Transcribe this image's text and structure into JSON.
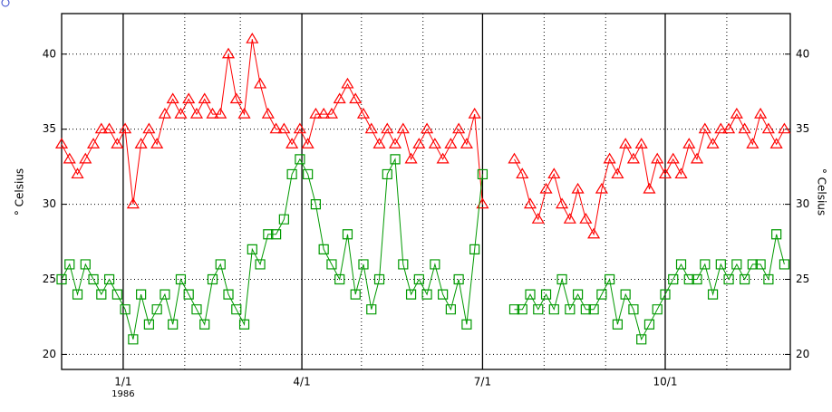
{
  "chart_data": {
    "type": "scatter-line",
    "y_label": "° Celsius",
    "xlim": [
      "1985-12-01",
      "1986-12-03"
    ],
    "xticks": [
      {
        "value": "1986-01-01",
        "label": "1/1",
        "sublabel": "1986"
      },
      {
        "value": "1986-04-01",
        "label": "4/1"
      },
      {
        "value": "1986-07-01",
        "label": "7/1"
      },
      {
        "value": "1986-10-01",
        "label": "10/1"
      }
    ],
    "minor_xticks": [
      "1986-02-01",
      "1986-03-01",
      "1986-05-01",
      "1986-06-01",
      "1986-08-01",
      "1986-09-01",
      "1986-11-01"
    ],
    "ylim": [
      19,
      42.7
    ],
    "yticks": [
      20,
      25,
      30,
      35,
      40
    ],
    "grid": true,
    "x": [
      "1985-12-01",
      "1985-12-05",
      "1985-12-09",
      "1985-12-13",
      "1985-12-17",
      "1985-12-21",
      "1985-12-25",
      "1985-12-29",
      "1986-01-02",
      "1986-01-06",
      "1986-01-10",
      "1986-01-14",
      "1986-01-18",
      "1986-01-22",
      "1986-01-26",
      "1986-01-30",
      "1986-02-03",
      "1986-02-07",
      "1986-02-11",
      "1986-02-15",
      "1986-02-19",
      "1986-02-23",
      "1986-02-27",
      "1986-03-03",
      "1986-03-07",
      "1986-03-11",
      "1986-03-15",
      "1986-03-19",
      "1986-03-23",
      "1986-03-27",
      "1986-03-31",
      "1986-04-04",
      "1986-04-08",
      "1986-04-12",
      "1986-04-16",
      "1986-04-20",
      "1986-04-24",
      "1986-04-28",
      "1986-05-02",
      "1986-05-06",
      "1986-05-10",
      "1986-05-14",
      "1986-05-18",
      "1986-05-22",
      "1986-05-26",
      "1986-05-30",
      "1986-06-03",
      "1986-06-07",
      "1986-06-11",
      "1986-06-15",
      "1986-06-19",
      "1986-06-23",
      "1986-06-27",
      "1986-07-01",
      "1986-07-05",
      "1986-07-09",
      "1986-07-13",
      "1986-07-17",
      "1986-07-21",
      "1986-07-25",
      "1986-07-29",
      "1986-08-02",
      "1986-08-06",
      "1986-08-10",
      "1986-08-14",
      "1986-08-18",
      "1986-08-22",
      "1986-08-26",
      "1986-08-30",
      "1986-09-03",
      "1986-09-07",
      "1986-09-11",
      "1986-09-15",
      "1986-09-19",
      "1986-09-23",
      "1986-09-27",
      "1986-10-01",
      "1986-10-05",
      "1986-10-09",
      "1986-10-13",
      "1986-10-17",
      "1986-10-21",
      "1986-10-25",
      "1986-10-29",
      "1986-11-02",
      "1986-11-06",
      "1986-11-10",
      "1986-11-14",
      "1986-11-18",
      "1986-11-22",
      "1986-11-26",
      "1986-11-30"
    ],
    "series": [
      {
        "color": "#ff0000",
        "marker": "triangle",
        "values": [
          34,
          33,
          32,
          33,
          34,
          35,
          35,
          34,
          35,
          30,
          34,
          35,
          34,
          36,
          37,
          36,
          37,
          36,
          37,
          36,
          36,
          40,
          37,
          36,
          41,
          38,
          36,
          35,
          35,
          34,
          35,
          34,
          36,
          36,
          36,
          37,
          38,
          37,
          36,
          35,
          34,
          35,
          34,
          35,
          33,
          34,
          35,
          34,
          33,
          34,
          35,
          34,
          36,
          30,
          null,
          null,
          null,
          33,
          32,
          30,
          29,
          31,
          32,
          30,
          29,
          31,
          29,
          28,
          31,
          33,
          32,
          34,
          33,
          34,
          31,
          33,
          32,
          33,
          32,
          34,
          33,
          35,
          34,
          35,
          35,
          36,
          35,
          34,
          36,
          35,
          34,
          35
        ]
      },
      {
        "color": "#009900",
        "marker": "square",
        "values": [
          25,
          26,
          24,
          26,
          25,
          24,
          25,
          24,
          23,
          21,
          24,
          22,
          23,
          24,
          22,
          25,
          24,
          23,
          22,
          25,
          26,
          24,
          23,
          22,
          27,
          26,
          28,
          28,
          29,
          32,
          33,
          32,
          30,
          27,
          26,
          25,
          28,
          24,
          26,
          23,
          25,
          32,
          33,
          26,
          24,
          25,
          24,
          26,
          24,
          23,
          25,
          22,
          27,
          32,
          null,
          null,
          null,
          23,
          23,
          24,
          23,
          24,
          23,
          25,
          23,
          24,
          23,
          23,
          24,
          25,
          22,
          24,
          23,
          21,
          22,
          23,
          24,
          25,
          26,
          25,
          25,
          26,
          24,
          26,
          25,
          26,
          25,
          26,
          26,
          25,
          28,
          26
        ]
      }
    ]
  }
}
